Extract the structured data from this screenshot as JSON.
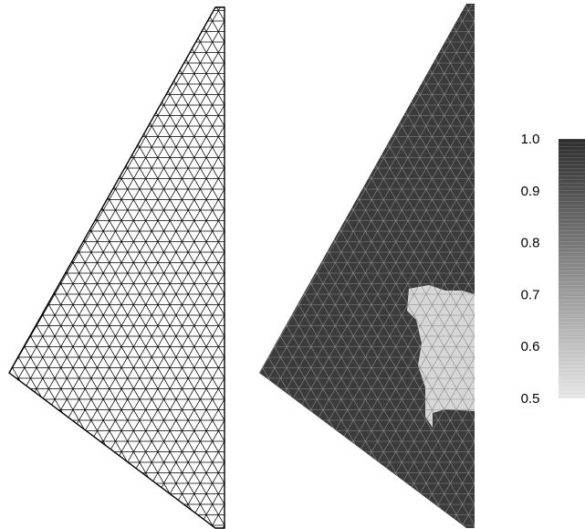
{
  "panels": [
    {
      "id": "mesh",
      "kind": "triangular-mesh-wireframe",
      "edge_color": "#000000",
      "fill_color": "#ffffff"
    },
    {
      "id": "field",
      "kind": "triangular-mesh-shaded",
      "edge_color": "#8a8a8a",
      "base_color": "#3b3b3b",
      "highlight_color": "#d6d6d6",
      "highlight_region": "light patch near the right edge in the middle",
      "base_value": 1.0,
      "highlight_value": 0.5
    }
  ],
  "colorbar": {
    "min": 0.5,
    "max": 1.0,
    "color_at_max": "#2d2d2d",
    "color_at_min": "#e6e6e6",
    "ticks": [
      "1.0",
      "0.9",
      "0.8",
      "0.7",
      "0.6",
      "0.5"
    ]
  }
}
